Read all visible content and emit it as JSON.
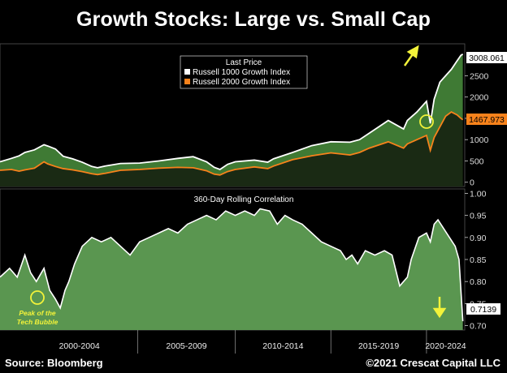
{
  "title": "Growth Stocks: Large vs. Small Cap",
  "source": "Source: Bloomberg",
  "copyright": "©2021 Crescat Capital LLC",
  "colors": {
    "background": "#000000",
    "large_cap": "#ffffff",
    "small_cap": "#f7821b",
    "fill": "#3f7a34",
    "corr_fill": "#5a9650",
    "highlight": "#f2f23a"
  },
  "chart_data": [
    {
      "type": "line",
      "panel": "top",
      "legend_title": "Last Price",
      "legend_position": "top-center",
      "ylim": [
        -100,
        3250
      ],
      "yticks": [
        0,
        500,
        1000,
        1500,
        2000,
        2500
      ],
      "last_values": {
        "large_cap": "3008.061",
        "small_cap": "1467.973"
      },
      "x_range": [
        1997.7,
        2022.0
      ],
      "series": [
        {
          "name": "Russell 1000 Growth Index",
          "color": "#ffffff",
          "x": [
            1997.7,
            1998.3,
            1998.7,
            1999.0,
            1999.5,
            2000.0,
            2000.2,
            2000.6,
            2001.0,
            2001.5,
            2002.0,
            2002.5,
            2002.8,
            2003.2,
            2004.0,
            2005.0,
            2006.0,
            2007.0,
            2007.8,
            2008.5,
            2008.9,
            2009.2,
            2009.6,
            2010.0,
            2011.0,
            2011.7,
            2012.0,
            2013.0,
            2014.0,
            2015.0,
            2016.0,
            2016.5,
            2017.0,
            2018.0,
            2018.8,
            2019.0,
            2019.5,
            2020.0,
            2020.2,
            2020.4,
            2020.7,
            2021.0,
            2021.3,
            2021.6,
            2021.8,
            2021.9
          ],
          "values": [
            480,
            560,
            620,
            700,
            760,
            880,
            850,
            780,
            610,
            550,
            470,
            370,
            340,
            380,
            440,
            450,
            500,
            560,
            600,
            480,
            350,
            300,
            420,
            480,
            520,
            470,
            550,
            700,
            860,
            950,
            940,
            1000,
            1150,
            1450,
            1250,
            1450,
            1650,
            1900,
            1380,
            1950,
            2350,
            2500,
            2650,
            2850,
            2980,
            3008
          ]
        },
        {
          "name": "Russell 2000 Growth Index",
          "color": "#f7821b",
          "x": [
            1997.7,
            1998.3,
            1998.7,
            1999.0,
            1999.5,
            2000.0,
            2000.2,
            2000.6,
            2001.0,
            2001.5,
            2002.0,
            2002.5,
            2002.8,
            2003.2,
            2004.0,
            2005.0,
            2006.0,
            2007.0,
            2007.8,
            2008.5,
            2008.9,
            2009.2,
            2009.6,
            2010.0,
            2011.0,
            2011.7,
            2012.0,
            2013.0,
            2014.0,
            2015.0,
            2016.0,
            2016.5,
            2017.0,
            2018.0,
            2018.8,
            2019.0,
            2019.5,
            2020.0,
            2020.2,
            2020.4,
            2020.7,
            2021.0,
            2021.3,
            2021.6,
            2021.8,
            2021.9
          ],
          "values": [
            280,
            300,
            260,
            290,
            330,
            480,
            430,
            370,
            320,
            290,
            250,
            200,
            180,
            210,
            280,
            300,
            330,
            350,
            340,
            270,
            190,
            170,
            250,
            300,
            360,
            320,
            380,
            530,
            620,
            690,
            640,
            700,
            800,
            950,
            800,
            900,
            1000,
            1100,
            750,
            1050,
            1300,
            1550,
            1650,
            1580,
            1500,
            1468
          ]
        }
      ],
      "annotations": [
        {
          "type": "arrow",
          "direction": "up-right",
          "near": "peak of large cap line"
        },
        {
          "type": "circle",
          "near": "last small cap value"
        }
      ]
    },
    {
      "type": "area",
      "panel": "bottom",
      "title": "360-Day Rolling Correlation",
      "ylim": [
        0.69,
        1.01
      ],
      "yticks": [
        "1.00",
        "0.95",
        "0.90",
        "0.85",
        "0.80",
        "0.75",
        "0.70"
      ],
      "last_value": "0.7139",
      "x_range": [
        1997.7,
        2022.0
      ],
      "x": [
        1997.7,
        1998.2,
        1998.6,
        1999.0,
        1999.3,
        1999.6,
        2000.0,
        2000.3,
        2000.6,
        2000.85,
        2001.1,
        2001.3,
        2001.6,
        2002.0,
        2002.5,
        2003.0,
        2003.5,
        2004.0,
        2004.5,
        2005.0,
        2005.5,
        2006.0,
        2006.5,
        2007.0,
        2007.5,
        2008.0,
        2008.5,
        2009.0,
        2009.5,
        2010.0,
        2010.5,
        2011.0,
        2011.3,
        2011.8,
        2012.2,
        2012.6,
        2013.0,
        2013.5,
        2014.0,
        2014.5,
        2015.0,
        2015.5,
        2015.8,
        2016.1,
        2016.4,
        2016.8,
        2017.3,
        2017.8,
        2018.2,
        2018.6,
        2019.0,
        2019.2,
        2019.6,
        2020.0,
        2020.2,
        2020.4,
        2020.6,
        2020.9,
        2021.2,
        2021.5,
        2021.7,
        2021.9
      ],
      "values": [
        0.81,
        0.83,
        0.81,
        0.86,
        0.82,
        0.8,
        0.83,
        0.78,
        0.76,
        0.74,
        0.78,
        0.8,
        0.84,
        0.88,
        0.9,
        0.89,
        0.9,
        0.88,
        0.86,
        0.89,
        0.9,
        0.91,
        0.92,
        0.91,
        0.93,
        0.94,
        0.95,
        0.94,
        0.96,
        0.95,
        0.96,
        0.95,
        0.965,
        0.96,
        0.93,
        0.95,
        0.94,
        0.93,
        0.91,
        0.89,
        0.88,
        0.87,
        0.85,
        0.86,
        0.84,
        0.87,
        0.86,
        0.87,
        0.86,
        0.79,
        0.81,
        0.85,
        0.9,
        0.91,
        0.89,
        0.93,
        0.94,
        0.92,
        0.9,
        0.88,
        0.85,
        0.71
      ],
      "annotations": [
        {
          "type": "circle",
          "label_line1": "Peak of the",
          "label_line2": "Tech Bubble"
        },
        {
          "type": "arrow",
          "direction": "down"
        }
      ]
    }
  ],
  "x_axis": {
    "labels": [
      "2000-2004",
      "2005-2009",
      "2010-2014",
      "2015-2019",
      "2020-2024"
    ],
    "boundaries": [
      1998.8,
      2004.9,
      2010.0,
      2015.0,
      2020.0,
      2025.0
    ]
  }
}
